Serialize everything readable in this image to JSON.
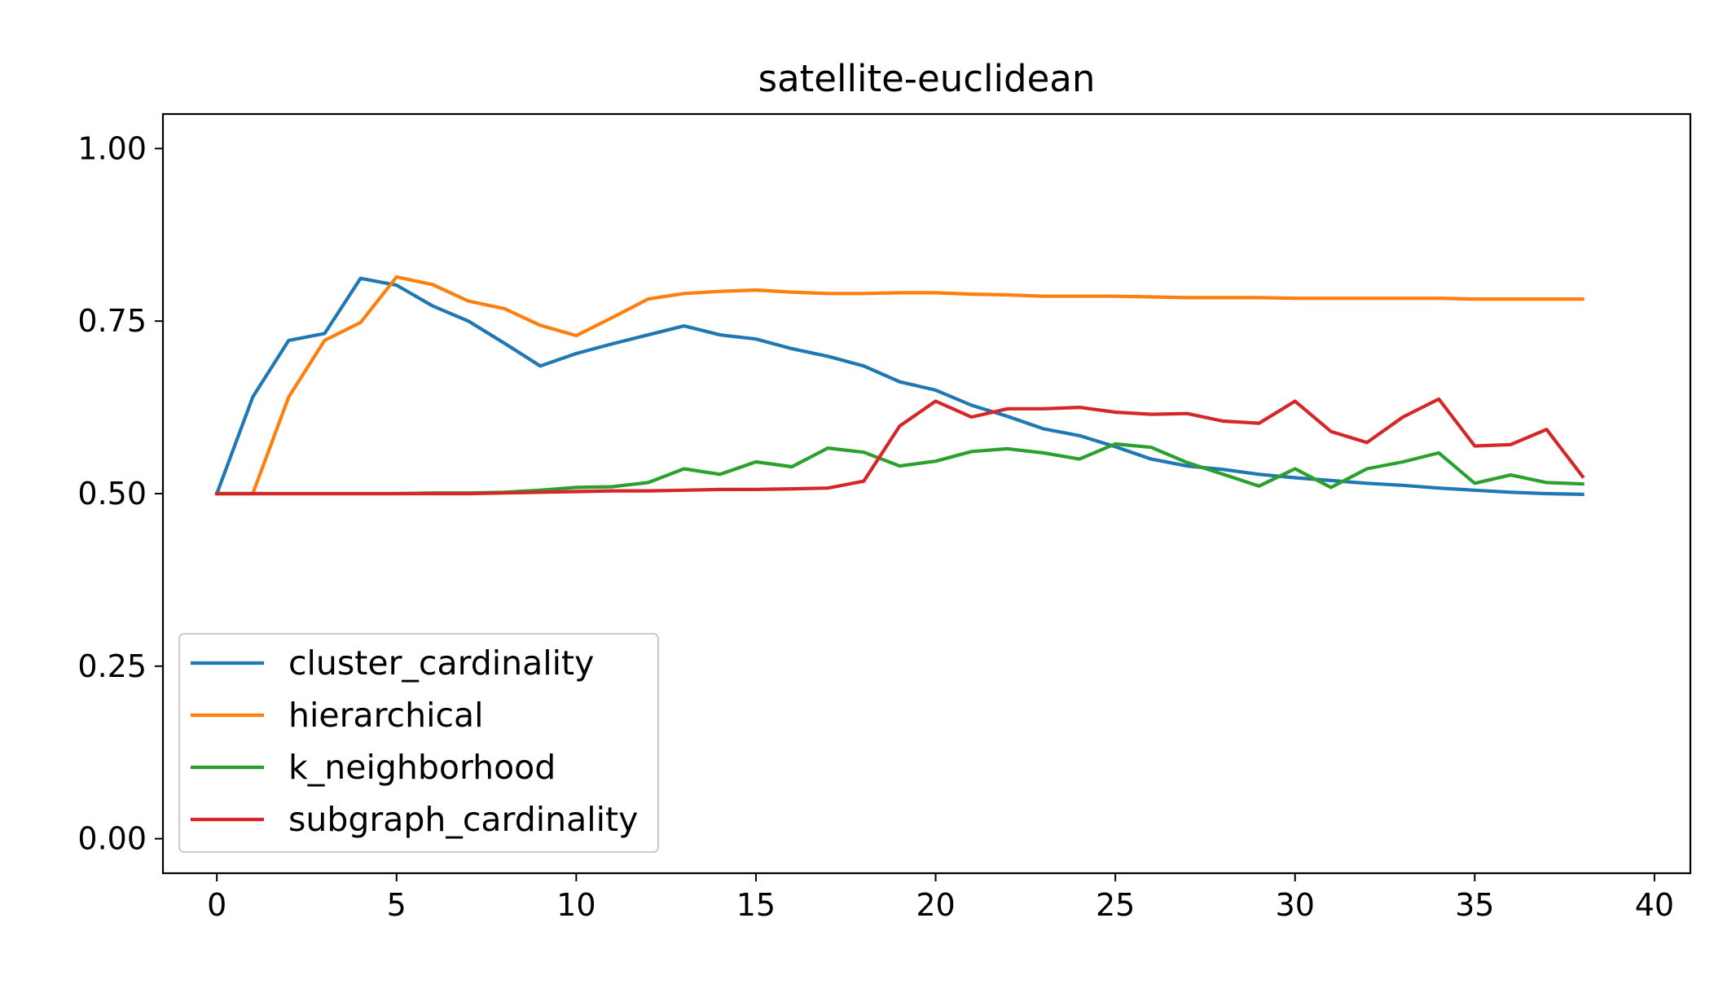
{
  "chart_data": {
    "type": "line",
    "title": "satellite-euclidean",
    "xlabel": "",
    "ylabel": "",
    "xlim": [
      -1.5,
      41
    ],
    "ylim": [
      -0.05,
      1.05
    ],
    "xticks": [
      0,
      5,
      10,
      15,
      20,
      25,
      30,
      35,
      40
    ],
    "xtick_labels": [
      "0",
      "5",
      "10",
      "15",
      "20",
      "25",
      "30",
      "35",
      "40"
    ],
    "yticks": [
      0,
      0.25,
      0.5,
      0.75,
      1.0
    ],
    "ytick_labels": [
      "0.00",
      "0.25",
      "0.50",
      "0.75",
      "1.00"
    ],
    "grid": false,
    "legend_position": "lower-left",
    "x": [
      0,
      1,
      2,
      3,
      4,
      5,
      6,
      7,
      8,
      9,
      10,
      11,
      12,
      13,
      14,
      15,
      16,
      17,
      18,
      19,
      20,
      21,
      22,
      23,
      24,
      25,
      26,
      27,
      28,
      29,
      30,
      31,
      32,
      33,
      34,
      35,
      36,
      37,
      38
    ],
    "series": [
      {
        "name": "cluster_cardinality",
        "color": "#1f77b4",
        "values": [
          0.5,
          0.64,
          0.722,
          0.732,
          0.812,
          0.802,
          0.772,
          0.75,
          0.718,
          0.685,
          0.703,
          0.717,
          0.73,
          0.743,
          0.73,
          0.724,
          0.71,
          0.699,
          0.685,
          0.662,
          0.65,
          0.628,
          0.612,
          0.594,
          0.584,
          0.568,
          0.55,
          0.54,
          0.535,
          0.528,
          0.523,
          0.519,
          0.515,
          0.512,
          0.508,
          0.505,
          0.502,
          0.5,
          0.499
        ]
      },
      {
        "name": "hierarchical",
        "color": "#ff7f0e",
        "values": [
          0.5,
          0.5,
          0.64,
          0.722,
          0.748,
          0.814,
          0.803,
          0.779,
          0.768,
          0.744,
          0.729,
          0.755,
          0.782,
          0.79,
          0.793,
          0.795,
          0.792,
          0.79,
          0.79,
          0.791,
          0.791,
          0.789,
          0.788,
          0.786,
          0.786,
          0.786,
          0.785,
          0.784,
          0.784,
          0.784,
          0.783,
          0.783,
          0.783,
          0.783,
          0.783,
          0.782,
          0.782,
          0.782,
          0.782
        ]
      },
      {
        "name": "k_neighborhood",
        "color": "#2ca02c",
        "values": [
          0.5,
          0.5,
          0.5,
          0.5,
          0.5,
          0.5,
          0.501,
          0.501,
          0.502,
          0.505,
          0.509,
          0.51,
          0.516,
          0.536,
          0.528,
          0.546,
          0.539,
          0.566,
          0.56,
          0.54,
          0.547,
          0.561,
          0.565,
          0.559,
          0.55,
          0.572,
          0.567,
          0.545,
          0.528,
          0.511,
          0.536,
          0.509,
          0.536,
          0.546,
          0.559,
          0.515,
          0.527,
          0.516,
          0.514
        ]
      },
      {
        "name": "subgraph_cardinality",
        "color": "#d62728",
        "values": [
          0.5,
          0.5,
          0.5,
          0.5,
          0.5,
          0.5,
          0.5,
          0.5,
          0.501,
          0.502,
          0.503,
          0.504,
          0.504,
          0.505,
          0.506,
          0.506,
          0.507,
          0.508,
          0.518,
          0.598,
          0.634,
          0.611,
          0.623,
          0.623,
          0.625,
          0.618,
          0.615,
          0.616,
          0.605,
          0.602,
          0.634,
          0.59,
          0.574,
          0.611,
          0.637,
          0.569,
          0.571,
          0.593,
          0.525
        ]
      }
    ]
  }
}
